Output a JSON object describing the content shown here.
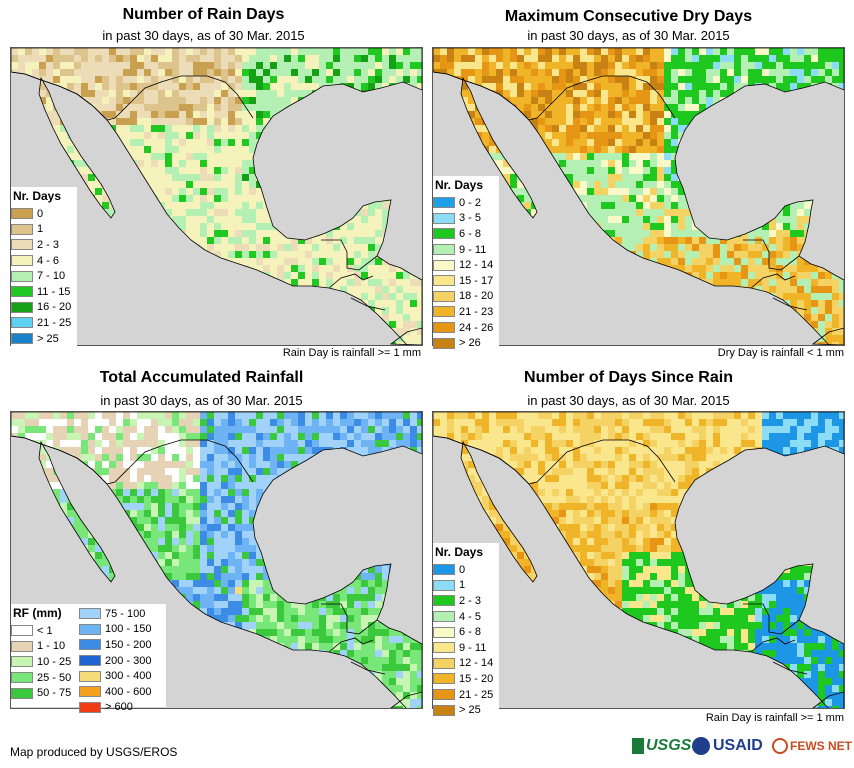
{
  "panels": [
    {
      "title": "Number of Rain Days",
      "subtitle": "in past 30 days, as of 30 Mar. 2015",
      "legend_title": "Nr. Days",
      "legend": [
        {
          "label": "0",
          "color": "#c8a050"
        },
        {
          "label": "1",
          "color": "#dcc48c"
        },
        {
          "label": "2 - 3",
          "color": "#ecdcb8"
        },
        {
          "label": "4 - 6",
          "color": "#f6f2bc"
        },
        {
          "label": "7 - 10",
          "color": "#b4f0b4"
        },
        {
          "label": "11 - 15",
          "color": "#22c822"
        },
        {
          "label": "16 - 20",
          "color": "#16a016"
        },
        {
          "label": "21 - 25",
          "color": "#5cd2f0"
        },
        {
          "label": "> 25",
          "color": "#1a82c8"
        }
      ],
      "note": "Rain Day is rainfall >= 1 mm"
    },
    {
      "title": "Maximum Consecutive Dry Days",
      "subtitle": "in past 30 days, as of 30 Mar. 2015",
      "legend_title": "Nr. Days",
      "legend": [
        {
          "label": "0 - 2",
          "color": "#1ea0e6"
        },
        {
          "label": "3 - 5",
          "color": "#8cdcf5"
        },
        {
          "label": "6 - 8",
          "color": "#1ec81e"
        },
        {
          "label": "9 - 11",
          "color": "#b4f0b4"
        },
        {
          "label": "12 - 14",
          "color": "#fafac8"
        },
        {
          "label": "15 - 17",
          "color": "#fae68c"
        },
        {
          "label": "18 - 20",
          "color": "#f5d264"
        },
        {
          "label": "21 - 23",
          "color": "#f0b428"
        },
        {
          "label": "24 - 26",
          "color": "#e69614"
        },
        {
          "label": "> 26",
          "color": "#c88214"
        }
      ],
      "note": "Dry Day is rainfall < 1 mm"
    },
    {
      "title": "Total Accumulated Rainfall",
      "subtitle": "in past 30 days, as of 30 Mar. 2015",
      "legend_title": "RF (mm)",
      "legend": [
        {
          "label": "< 1",
          "color": "#ffffff"
        },
        {
          "label": "1 - 10",
          "color": "#e6d2b4"
        },
        {
          "label": "10 - 25",
          "color": "#c8f5b4"
        },
        {
          "label": "25 - 50",
          "color": "#78e678"
        },
        {
          "label": "50 - 75",
          "color": "#3cc83c"
        }
      ],
      "legend2": [
        {
          "label": "75 - 100",
          "color": "#a0d2fa"
        },
        {
          "label": "100 - 150",
          "color": "#6eb4f5"
        },
        {
          "label": "150 - 200",
          "color": "#3c8ce6"
        },
        {
          "label": "200 - 300",
          "color": "#1e64d2"
        },
        {
          "label": "300 - 400",
          "color": "#f5dc78"
        },
        {
          "label": "400 - 600",
          "color": "#f5a01e"
        },
        {
          "label": "> 600",
          "color": "#f03c14"
        }
      ],
      "note": ""
    },
    {
      "title": "Number of Days Since Rain",
      "subtitle": "in past 30 days, as of 30 Mar. 2015",
      "legend_title": "Nr. Days",
      "legend": [
        {
          "label": "0",
          "color": "#1e96e6"
        },
        {
          "label": "1",
          "color": "#8cdcf5"
        },
        {
          "label": "2 - 3",
          "color": "#1ec81e"
        },
        {
          "label": "4 - 5",
          "color": "#b4f0b4"
        },
        {
          "label": "6 - 8",
          "color": "#fafac8"
        },
        {
          "label": "9 - 11",
          "color": "#fae68c"
        },
        {
          "label": "12 - 14",
          "color": "#f5d264"
        },
        {
          "label": "15 - 20",
          "color": "#f0b428"
        },
        {
          "label": "21 - 25",
          "color": "#e69614"
        },
        {
          "label": "> 25",
          "color": "#c88214"
        }
      ],
      "note": "Rain Day is rainfall >= 1 mm"
    }
  ],
  "credit": "Map produced by USGS/EROS",
  "logos": {
    "usgs": "USGS",
    "usaid": "USAID",
    "fewsnet": "FEWS NET"
  },
  "colors": {
    "ocean": "#d4d4d4",
    "border": "#000000"
  }
}
